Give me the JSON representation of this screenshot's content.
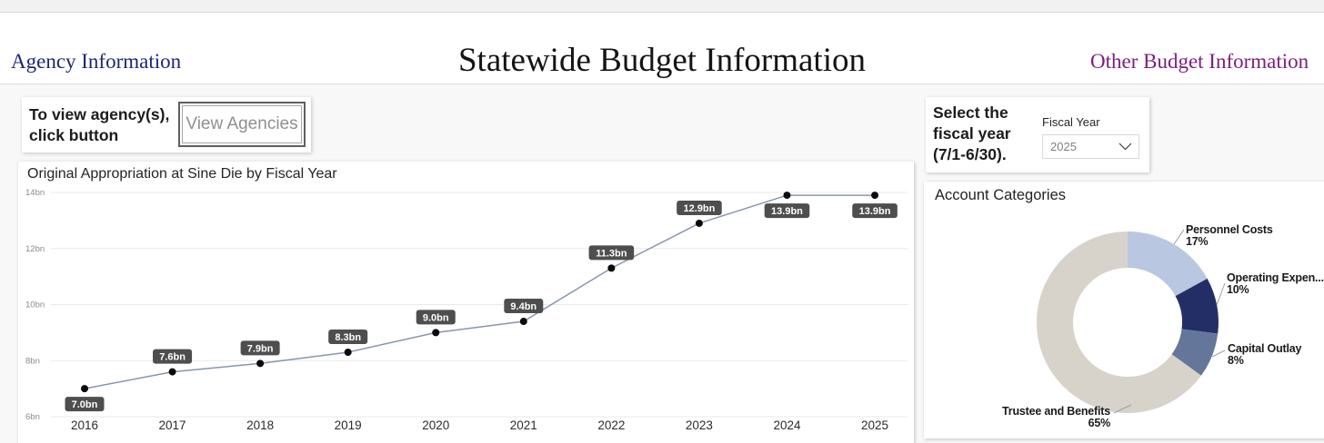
{
  "header": {
    "left_link": "Agency Information",
    "title": "Statewide Budget Information",
    "right_link": "Other Budget Information"
  },
  "agency_panel": {
    "prompt_line1": "To view agency(s),",
    "prompt_line2": "click button",
    "button_label": "View Agencies"
  },
  "fiscal_panel": {
    "prompt": "Select the fiscal year (7/1-6/30).",
    "dropdown_label": "Fiscal Year",
    "selected_value": "2025"
  },
  "chart_data": [
    {
      "type": "line",
      "title": "Original Appropriation at Sine Die by Fiscal Year",
      "x": [
        "2016",
        "2017",
        "2018",
        "2019",
        "2020",
        "2021",
        "2022",
        "2023",
        "2024",
        "2025"
      ],
      "values": [
        7.0,
        7.6,
        7.9,
        8.3,
        9.0,
        9.4,
        11.3,
        12.9,
        13.9,
        13.9
      ],
      "unit": "bn",
      "data_labels": [
        "7.0bn",
        "7.6bn",
        "7.9bn",
        "8.3bn",
        "9.0bn",
        "9.4bn",
        "11.3bn",
        "12.9bn",
        "13.9bn",
        "13.9bn"
      ],
      "label_position": [
        "below",
        "above",
        "above",
        "above",
        "above",
        "above",
        "above",
        "above",
        "below",
        "below"
      ],
      "y_ticks": [
        "6bn",
        "8bn",
        "10bn",
        "12bn",
        "14bn"
      ],
      "y_tick_values": [
        6,
        8,
        10,
        12,
        14
      ],
      "ylim": [
        6,
        14
      ],
      "grid": true,
      "line_color": "#8796ab",
      "point_color": "#0a0a0a",
      "label_bg": "#4e4e4e",
      "label_fg": "#ffffff"
    },
    {
      "type": "donut",
      "title": "Account Categories",
      "slices": [
        {
          "label": "Personnel Costs",
          "pct": 17,
          "color": "#b9c8e0"
        },
        {
          "label": "Operating Expen...",
          "pct": 10,
          "color": "#242e66"
        },
        {
          "label": "Capital Outlay",
          "pct": 8,
          "color": "#64779a"
        },
        {
          "label": "Trustee and Benefits",
          "pct": 65,
          "color": "#d7d3ca"
        }
      ],
      "leader_color": "#9e9e9e",
      "label_color": "#1a1a1a"
    }
  ]
}
